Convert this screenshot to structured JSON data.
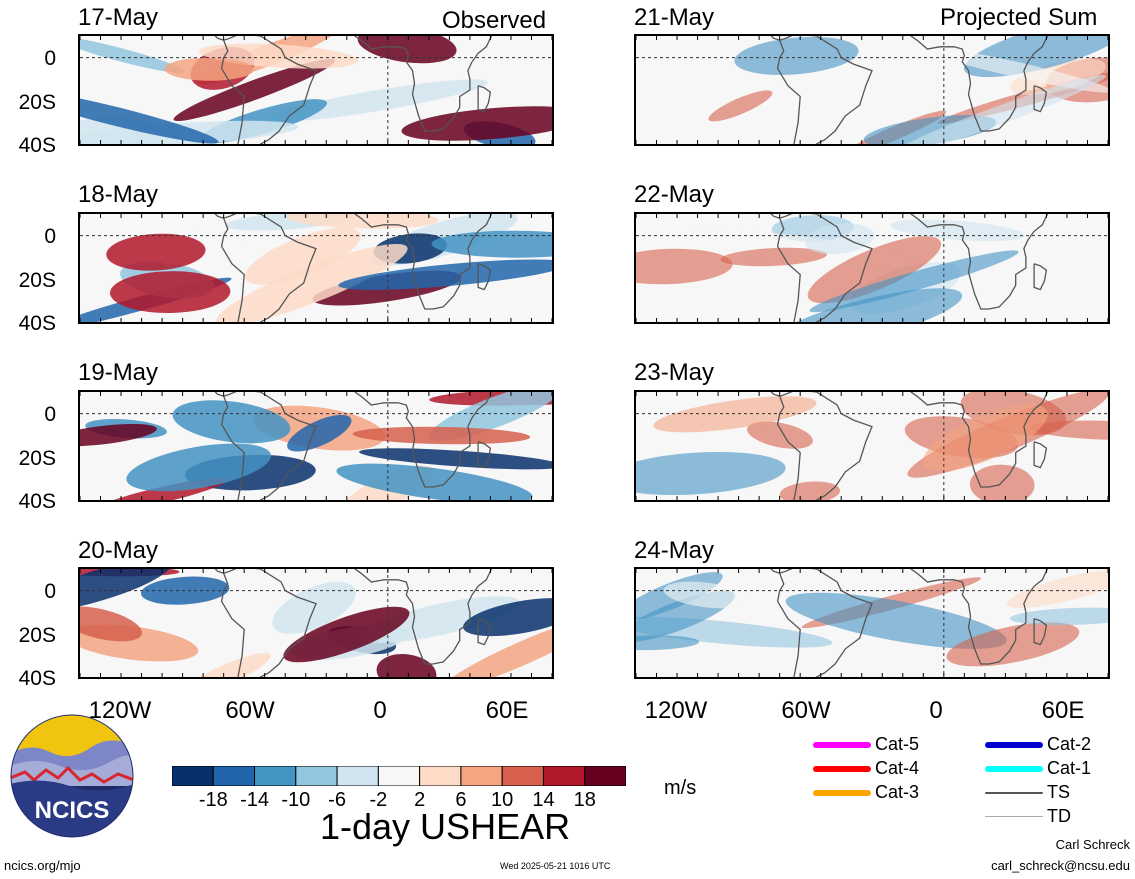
{
  "titles": {
    "left": "Observed",
    "right": "Projected Sum"
  },
  "panels_left": [
    {
      "date": "17-May"
    },
    {
      "date": "18-May"
    },
    {
      "date": "19-May"
    },
    {
      "date": "20-May"
    }
  ],
  "panels_right": [
    {
      "date": "21-May"
    },
    {
      "date": "22-May"
    },
    {
      "date": "23-May"
    },
    {
      "date": "24-May"
    }
  ],
  "lat_labels": [
    "0",
    "20S",
    "40S"
  ],
  "lon_labels": [
    "120W",
    "60W",
    "0",
    "60E"
  ],
  "colorbar": {
    "colors": [
      "#08306b",
      "#2166ac",
      "#4393c3",
      "#92c5de",
      "#d1e5f0",
      "#f7f7f7",
      "#fddbc7",
      "#f4a582",
      "#d6604d",
      "#b2182b",
      "#67001f"
    ],
    "labels": [
      "-18",
      "-14",
      "-10",
      "-6",
      "-2",
      "2",
      "6",
      "10",
      "14",
      "18"
    ],
    "units": "m/s"
  },
  "chart_title": "1-day USHEAR",
  "legend": [
    {
      "label": "Cat-5",
      "color": "#ff00ff"
    },
    {
      "label": "Cat-4",
      "color": "#ff0000"
    },
    {
      "label": "Cat-3",
      "color": "#ffa500"
    },
    {
      "label": "Cat-2",
      "color": "#0000cc"
    },
    {
      "label": "Cat-1",
      "color": "#00ffff"
    },
    {
      "label": "TS",
      "color": "#555555"
    },
    {
      "label": "TD",
      "color": "#aaaaaa"
    }
  ],
  "logo_text": "NCICS",
  "footer": {
    "url": "ncics.org/mjo",
    "timestamp": "Wed 2025-05-21 1016 UTC",
    "author": "Carl Schreck",
    "email": "carl_schreck@ncsu.edu"
  }
}
